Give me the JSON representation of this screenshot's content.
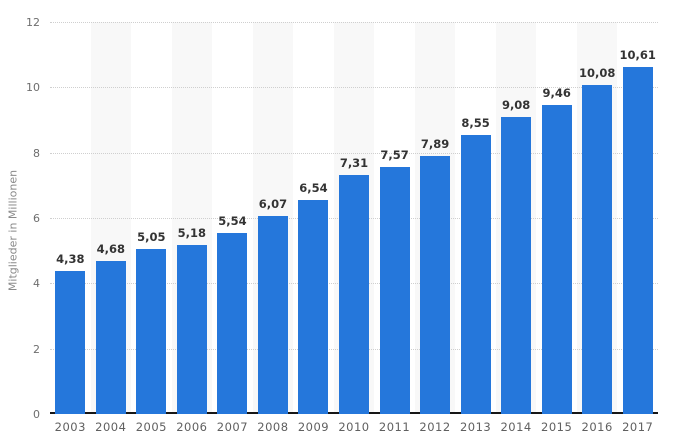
{
  "chart_data": {
    "type": "bar",
    "title": "",
    "xlabel": "",
    "ylabel": "Mitglieder in Millionen",
    "categories": [
      "2003",
      "2004",
      "2005",
      "2006",
      "2007",
      "2008",
      "2009",
      "2010",
      "2011",
      "2012",
      "2013",
      "2014",
      "2015",
      "2016",
      "2017"
    ],
    "values": [
      4.38,
      4.68,
      5.05,
      5.18,
      5.54,
      6.07,
      6.54,
      7.31,
      7.57,
      7.89,
      8.55,
      9.08,
      9.46,
      10.08,
      10.61
    ],
    "value_labels": [
      "4,38",
      "4,68",
      "5,05",
      "5,18",
      "5,54",
      "6,07",
      "6,54",
      "7,31",
      "7,57",
      "7,89",
      "8,55",
      "9,08",
      "9,46",
      "10,08",
      "10,61"
    ],
    "ylim": [
      0,
      12
    ],
    "yticks": [
      0,
      2,
      4,
      6,
      8,
      10,
      12
    ],
    "ytick_labels": [
      "0",
      "2",
      "4",
      "6",
      "8",
      "10",
      "12"
    ],
    "grid": "horizontal-dotted",
    "legend": "none",
    "decimal_separator": ",",
    "alternating_bands": "light stripe behind every second category starting with 2004"
  },
  "colors": {
    "bar": "#2577db",
    "band": "#f8f8f8",
    "gridline": "#cfcfcf",
    "axis_line": "#161616",
    "value_label": "#333333",
    "tick_label": "#6e6e6e",
    "x_label": "#606060",
    "y_axis_title": "#8a8a8a",
    "background": "#ffffff"
  }
}
